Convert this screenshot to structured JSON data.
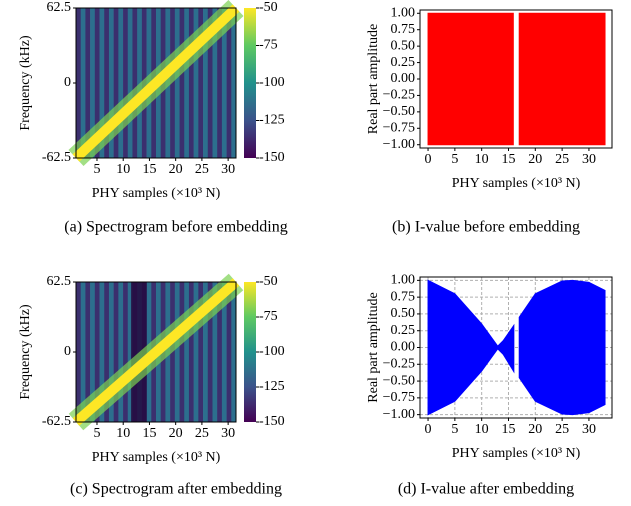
{
  "chart_data": [
    {
      "type": "heatmap",
      "caption": "(a) Spectrogram before embedding",
      "xlabel": "PHY samples (×10³ N)",
      "ylabel": "Frequency (kHz)",
      "xlim": [
        1,
        31.5
      ],
      "ylim": [
        -62.5,
        62.5
      ],
      "xticks": [
        5,
        10,
        15,
        20,
        25,
        30
      ],
      "yticks": [
        -62.5,
        0,
        62.5
      ],
      "clim": [
        -150,
        -50
      ],
      "cticks": [
        -50,
        -75,
        -100,
        -125,
        -150
      ],
      "ridge": {
        "x": [
          1,
          31.5
        ],
        "y": [
          -62.5,
          62.5
        ]
      }
    },
    {
      "type": "area",
      "caption": "(b) I-value before embedding",
      "xlabel": "PHY samples (×10³ N)",
      "ylabel": "Real part amplitude",
      "xlim": [
        -1.5,
        34.3
      ],
      "ylim": [
        -1.05,
        1.05
      ],
      "xticks": [
        0,
        5,
        10,
        15,
        20,
        25,
        30
      ],
      "yticks": [
        {
          "value": 1,
          "label": "1.00"
        },
        0.75,
        {
          "value": 0.5,
          "label": "0.50"
        },
        0.25,
        {
          "value": 0,
          "label": "0.00"
        },
        {
          "value": -0.25,
          "label": "−0.25"
        },
        {
          "value": -0.5,
          "label": "−0.50"
        },
        {
          "value": -0.75,
          "label": "−0.75"
        },
        {
          "value": -1,
          "label": "−1.00"
        }
      ],
      "grid": false,
      "color": "#ff0000",
      "x": [
        0,
        15.9,
        16.2,
        17,
        33
      ],
      "upper": [
        1,
        1,
        null,
        1,
        1
      ],
      "lower": [
        -1,
        -1,
        null,
        -1,
        -1
      ]
    },
    {
      "type": "heatmap",
      "caption": "(c) Spectrogram after embedding",
      "xlabel": "PHY samples (×10³ N)",
      "ylabel": "Frequency (kHz)",
      "xlim": [
        1,
        31.5
      ],
      "ylim": [
        -62.5,
        62.5
      ],
      "xticks": [
        5,
        10,
        15,
        20,
        25,
        30
      ],
      "yticks": [
        -62.5,
        0,
        62.5
      ],
      "clim": [
        -150,
        -50
      ],
      "cticks": [
        -50,
        -75,
        -100,
        -125,
        -150
      ],
      "ridge": {
        "x": [
          1,
          31.5
        ],
        "y": [
          -62.5,
          62.5
        ]
      },
      "notch": [
        11.5,
        14.5
      ]
    },
    {
      "type": "area",
      "caption": "(d) I-value after embedding",
      "xlabel": "PHY samples (×10³ N)",
      "ylabel": "Real part amplitude",
      "xlim": [
        -1.5,
        34.3
      ],
      "ylim": [
        -1.05,
        1.05
      ],
      "xticks": [
        0,
        5,
        10,
        15,
        20,
        25,
        30
      ],
      "yticks": [
        {
          "value": 1,
          "label": "1.00"
        },
        0.75,
        {
          "value": 0.5,
          "label": "0.50"
        },
        0.25,
        {
          "value": 0,
          "label": "0.00"
        },
        {
          "value": -0.25,
          "label": "−0.25"
        },
        {
          "value": -0.5,
          "label": "−0.50"
        },
        {
          "value": -0.75,
          "label": "−0.75"
        },
        {
          "value": -1,
          "label": "−1.00"
        }
      ],
      "grid": true,
      "color": "#0000ff",
      "x": [
        0,
        5,
        10,
        13,
        14,
        16,
        16.3,
        17,
        20,
        25,
        27,
        30,
        33
      ],
      "upper": [
        1,
        0.8,
        0.35,
        0.02,
        0.1,
        0.33,
        null,
        0.45,
        0.8,
        0.99,
        1,
        0.97,
        0.85
      ],
      "lower": [
        -1,
        -0.8,
        -0.35,
        -0.02,
        -0.1,
        -0.36,
        null,
        -0.45,
        -0.8,
        -0.99,
        -1,
        -0.97,
        -0.85
      ]
    }
  ]
}
